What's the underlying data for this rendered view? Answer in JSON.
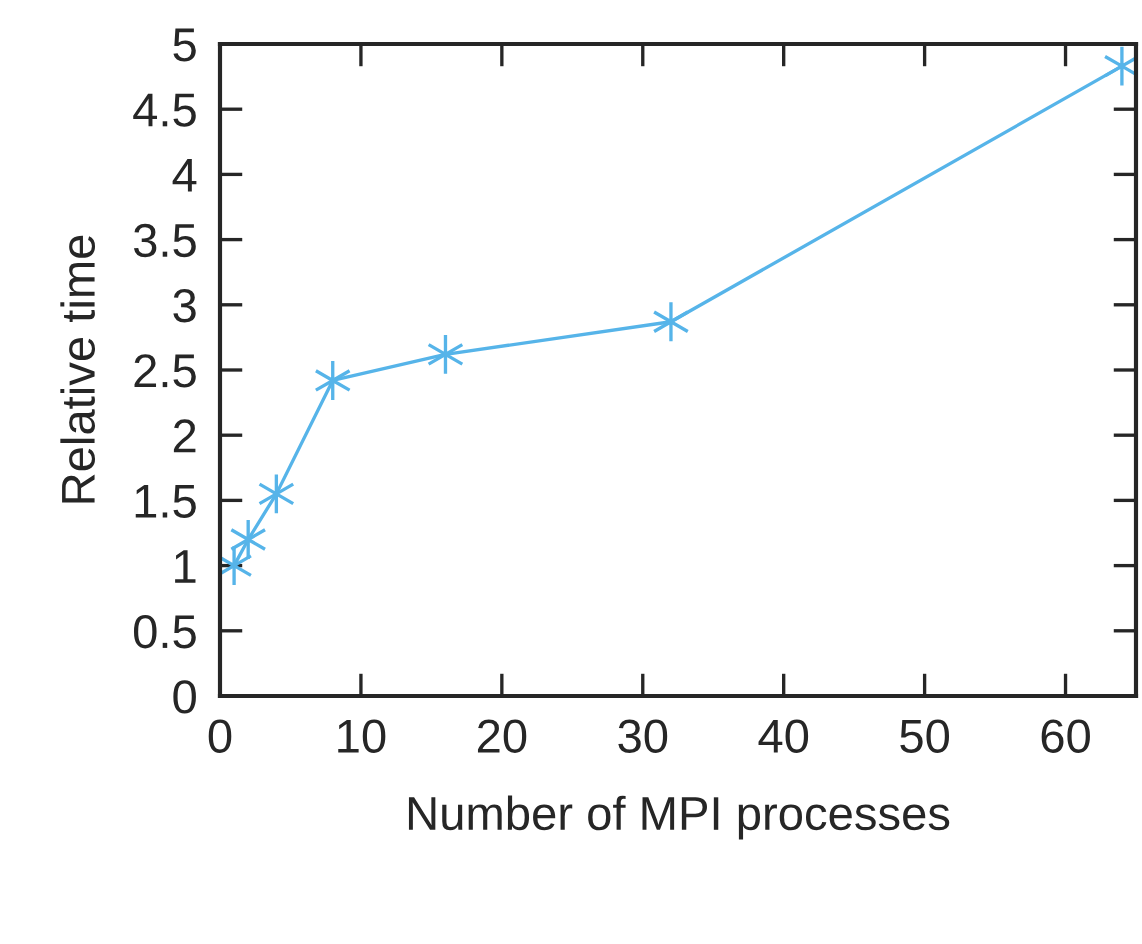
{
  "chart_data": {
    "type": "line",
    "xlabel": "Number of MPI processes",
    "ylabel": "Relative time",
    "x": [
      1,
      2,
      4,
      8,
      16,
      32,
      64
    ],
    "series": [
      {
        "color": "#56b4e9",
        "values": [
          1.0,
          1.2,
          1.55,
          2.42,
          2.62,
          2.87,
          4.83
        ]
      }
    ],
    "xlim": [
      0,
      65
    ],
    "ylim": [
      0,
      5
    ],
    "xticks": [
      0,
      10,
      20,
      30,
      40,
      50,
      60
    ],
    "yticks": [
      0,
      0.5,
      1,
      1.5,
      2,
      2.5,
      3,
      3.5,
      4,
      4.5,
      5
    ],
    "marker": "cross",
    "line_style": "solid",
    "grid": false,
    "legend": false
  }
}
